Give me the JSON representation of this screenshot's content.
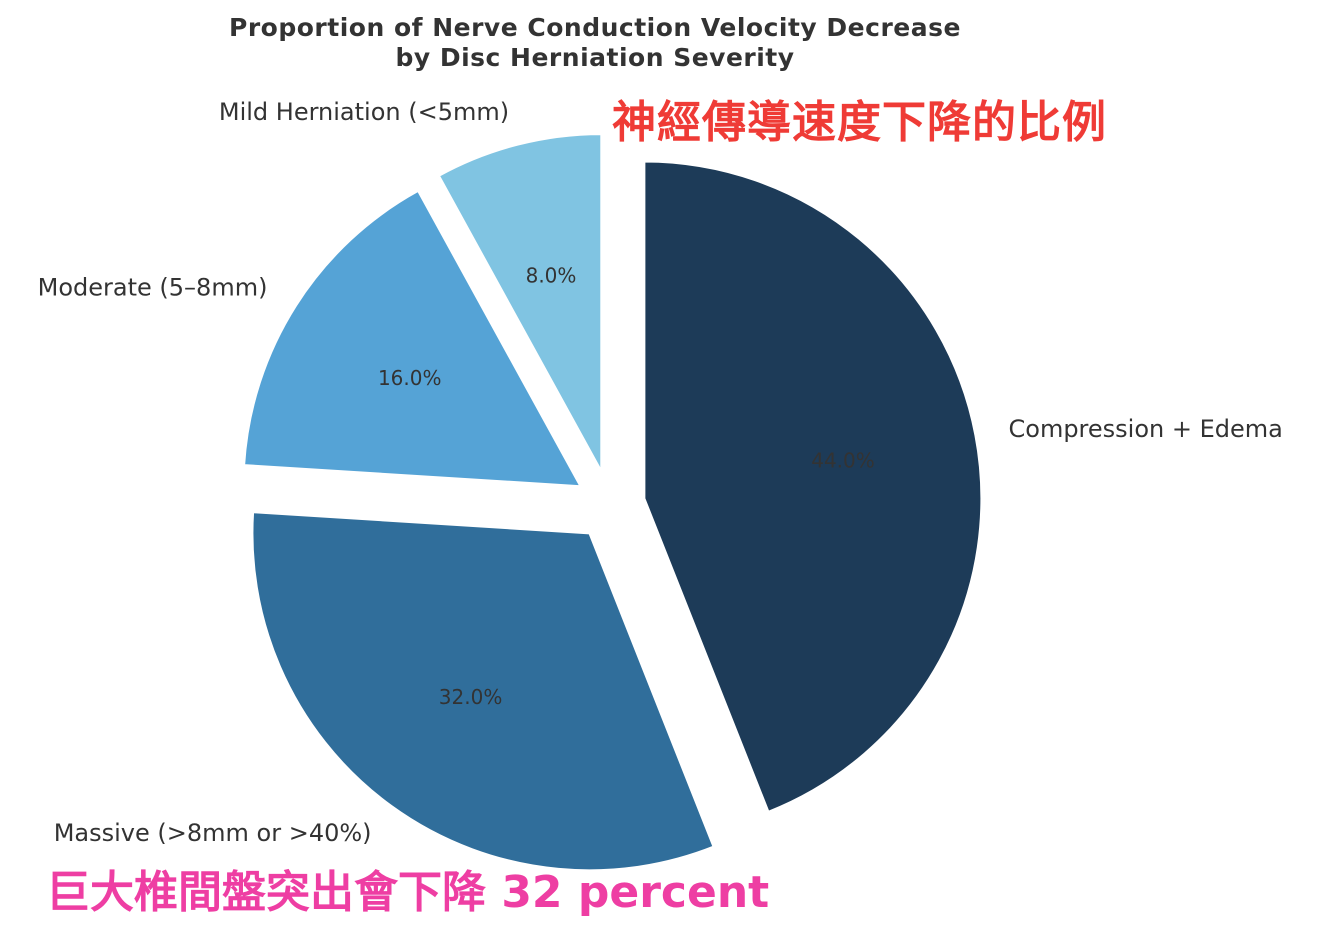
{
  "chart_data": {
    "type": "pie",
    "title": "Proportion of Nerve Conduction Velocity Decrease\nby Disc Herniation Severity",
    "title_lines": [
      "Proportion of Nerve Conduction Velocity Decrease",
      "by Disc Herniation Severity"
    ],
    "slices": [
      {
        "label": "Mild Herniation (<5mm)",
        "value": 8.0,
        "pct_label": "8.0%",
        "color": "#80c4e2"
      },
      {
        "label": "Moderate (5–8mm)",
        "value": 16.0,
        "pct_label": "16.0%",
        "color": "#55a3d6"
      },
      {
        "label": "Massive (>8mm or >40%)",
        "value": 32.0,
        "pct_label": "32.0%",
        "color": "#306e9b"
      },
      {
        "label": "Compression + Edema",
        "value": 44.0,
        "pct_label": "44.0%",
        "color": "#1d3b58"
      }
    ],
    "legend": "none"
  },
  "annotations": {
    "top_right": "神經傳導速度下降的比例",
    "bottom_left": "巨大椎間盤突出會下降 32 percent",
    "top_right_color": "#ef3b36",
    "bottom_left_color": "#ee3ea3"
  }
}
